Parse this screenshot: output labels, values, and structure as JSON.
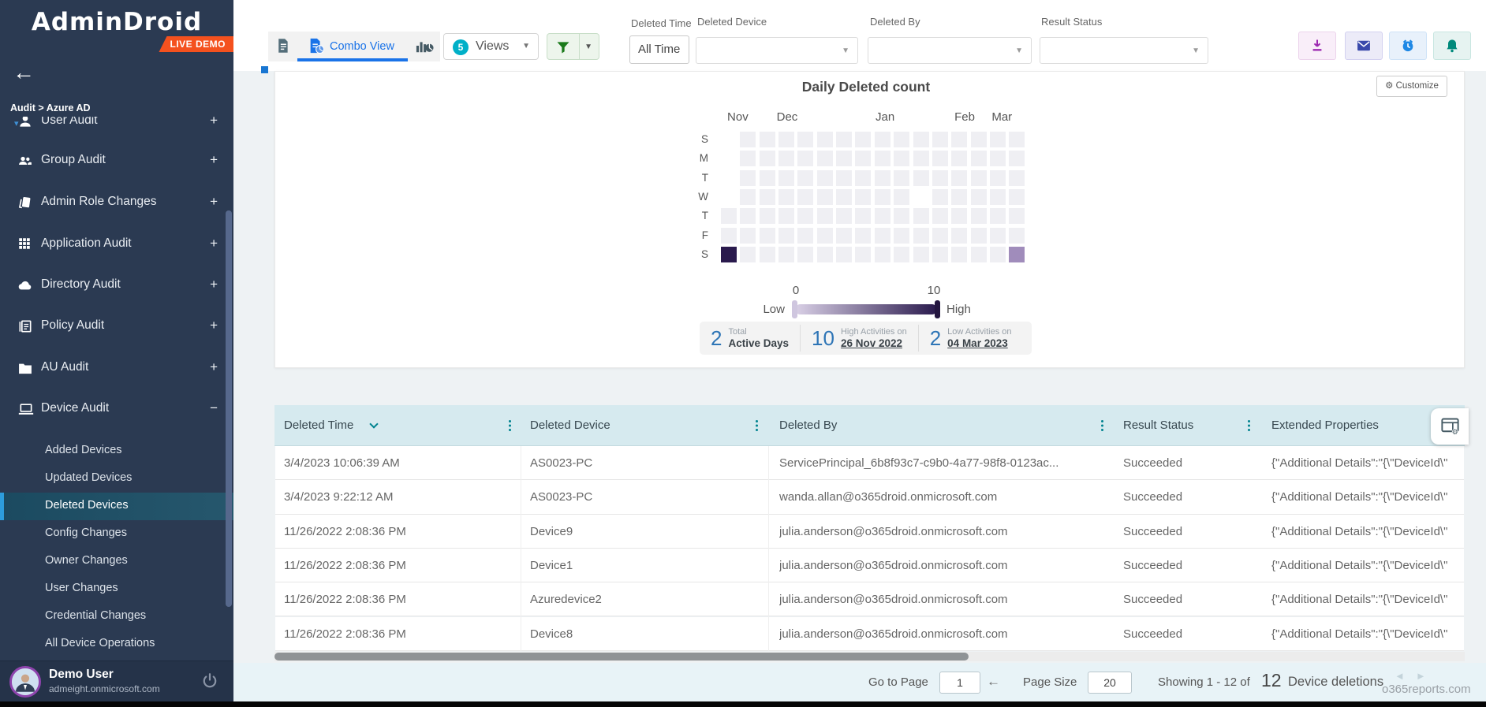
{
  "app": {
    "name": "AdminDroid",
    "badge": "LIVE DEMO"
  },
  "sidebar": {
    "breadcrumb": "Audit > Azure AD",
    "items": [
      {
        "label": "User Audit",
        "icon": "user-icon",
        "expand": "+"
      },
      {
        "label": "Group Audit",
        "icon": "group-icon",
        "expand": "+"
      },
      {
        "label": "Admin Role Changes",
        "icon": "roles-icon",
        "expand": "+"
      },
      {
        "label": "Application Audit",
        "icon": "apps-icon",
        "expand": "+"
      },
      {
        "label": "Directory Audit",
        "icon": "cloud-icon",
        "expand": "+"
      },
      {
        "label": "Policy Audit",
        "icon": "policy-icon",
        "expand": "+"
      },
      {
        "label": "AU Audit",
        "icon": "folder-icon",
        "expand": "+"
      },
      {
        "label": "Device Audit",
        "icon": "device-icon",
        "expand": "−"
      }
    ],
    "submenu": [
      "Added Devices",
      "Updated Devices",
      "Deleted Devices",
      "Config Changes",
      "Owner Changes",
      "User Changes",
      "Credential Changes",
      "All Device Operations"
    ],
    "selected_subitem": "Deleted Devices",
    "user": {
      "name": "Demo User",
      "email": "admeight.onmicrosoft.com"
    }
  },
  "toolbar": {
    "combo_tab_label": "Combo View",
    "views": {
      "count": "5",
      "label": "Views"
    },
    "filters": {
      "deleted_time": {
        "label": "Deleted Time",
        "value": "All Time"
      },
      "deleted_device": {
        "label": "Deleted Device",
        "value": ""
      },
      "deleted_by": {
        "label": "Deleted By",
        "value": ""
      },
      "result_status": {
        "label": "Result Status",
        "value": ""
      }
    }
  },
  "chart_data": {
    "type": "heatmap",
    "title": "Daily Deleted count",
    "day_labels": [
      "S",
      "M",
      "T",
      "W",
      "T",
      "F",
      "S"
    ],
    "months": [
      {
        "label": "Nov",
        "week": 0.33
      },
      {
        "label": "Dec",
        "week": 2.9
      },
      {
        "label": "Jan",
        "week": 8.05
      },
      {
        "label": "Feb",
        "week": 12.16
      },
      {
        "label": "Mar",
        "week": 14.1
      }
    ],
    "weeks": 16,
    "empty_cell_color": "#efeff3",
    "missing_cells": [
      [
        0,
        0
      ],
      [
        0,
        1
      ],
      [
        0,
        2
      ],
      [
        0,
        3
      ],
      [
        10,
        3
      ]
    ],
    "data_points": [
      {
        "week": 0,
        "day": 6,
        "date": "26 Nov 2022",
        "value": 10,
        "color": "#2a1a4d"
      },
      {
        "week": 15,
        "day": 6,
        "date": "04 Mar 2023",
        "value": 2,
        "color": "#a08cbb"
      }
    ],
    "scale": {
      "min": "0",
      "max": "10",
      "low": "Low",
      "high": "High",
      "gradient_from": "#d9d0e6",
      "gradient_to": "#2a1a4d"
    },
    "stats": [
      {
        "value": "2",
        "label_top": "Total",
        "label_bottom": "Active Days",
        "underline": false
      },
      {
        "value": "10",
        "label_top": "High Activities on",
        "label_bottom": "26 Nov 2022",
        "underline": true
      },
      {
        "value": "2",
        "label_top": "Low Activities on",
        "label_bottom": "04 Mar 2023",
        "underline": true
      }
    ],
    "customize_label": "Customize"
  },
  "table": {
    "columns": [
      "Deleted Time",
      "Deleted Device",
      "Deleted By",
      "Result Status",
      "Extended Properties"
    ],
    "rows": [
      {
        "time": "3/4/2023 10:06:39 AM",
        "device": "AS0023-PC",
        "by": "ServicePrincipal_6b8f93c7-c9b0-4a77-98f8-0123ac...",
        "status": "Succeeded",
        "ext": "{\"Additional Details\":\"{\\\"DeviceId\\\""
      },
      {
        "time": "3/4/2023 9:22:12 AM",
        "device": "AS0023-PC",
        "by": "wanda.allan@o365droid.onmicrosoft.com",
        "status": "Succeeded",
        "ext": "{\"Additional Details\":\"{\\\"DeviceId\\\""
      },
      {
        "time": "11/26/2022 2:08:36 PM",
        "device": "Device9",
        "by": "julia.anderson@o365droid.onmicrosoft.com",
        "status": "Succeeded",
        "ext": "{\"Additional Details\":\"{\\\"DeviceId\\\""
      },
      {
        "time": "11/26/2022 2:08:36 PM",
        "device": "Device1",
        "by": "julia.anderson@o365droid.onmicrosoft.com",
        "status": "Succeeded",
        "ext": "{\"Additional Details\":\"{\\\"DeviceId\\\""
      },
      {
        "time": "11/26/2022 2:08:36 PM",
        "device": "Azuredevice2",
        "by": "julia.anderson@o365droid.onmicrosoft.com",
        "status": "Succeeded",
        "ext": "{\"Additional Details\":\"{\\\"DeviceId\\\""
      },
      {
        "time": "11/26/2022 2:08:36 PM",
        "device": "Device8",
        "by": "julia.anderson@o365droid.onmicrosoft.com",
        "status": "Succeeded",
        "ext": "{\"Additional Details\":\"{\\\"DeviceId\\\""
      }
    ]
  },
  "footer": {
    "goto_label": "Go to Page",
    "goto_value": "1",
    "page_size_label": "Page Size",
    "page_size_value": "20",
    "showing_prefix": "Showing 1 - 12 of",
    "total": "12",
    "showing_suffix": "Device deletions"
  },
  "watermark": "o365reports.com"
}
